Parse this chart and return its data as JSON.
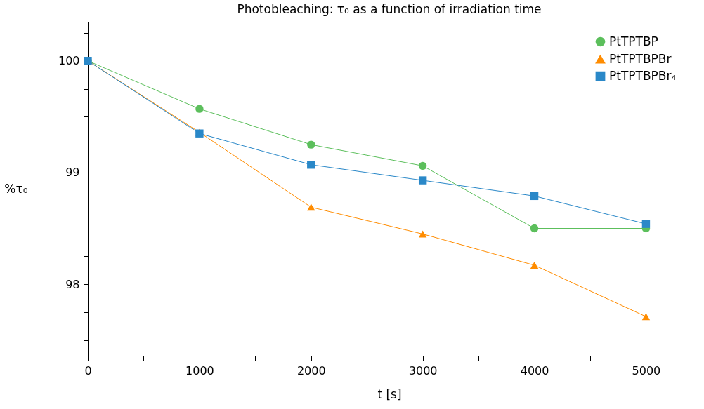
{
  "chart_data": {
    "type": "line",
    "title": "Photobleaching: τ₀ as a function of irradiation time",
    "xlabel": "t [s]",
    "ylabel": "%τ₀",
    "x": [
      0,
      1000,
      2000,
      3000,
      4000,
      5000
    ],
    "series": [
      {
        "name": "PtTPTBP",
        "color": "#5cbf5c",
        "marker": "circle",
        "values": [
          100,
          99.57,
          99.25,
          99.06,
          98.5,
          98.5
        ]
      },
      {
        "name": "PtTPTBPBr",
        "color": "#ff8c00",
        "marker": "triangle",
        "values": [
          100,
          99.36,
          98.69,
          98.45,
          98.17,
          97.71
        ]
      },
      {
        "name": "PtTPTBPBr₄",
        "color": "#2a88c8",
        "marker": "square",
        "values": [
          100,
          99.35,
          99.07,
          98.93,
          98.79,
          98.54
        ]
      }
    ],
    "xlim": [
      0,
      5400
    ],
    "ylim": [
      97.36,
      100.35
    ],
    "xticks": [
      0,
      {
        "value": 500,
        "label": null
      },
      1000,
      {
        "value": 1500,
        "label": null
      },
      2000,
      {
        "value": 2500,
        "label": null
      },
      3000,
      {
        "value": 3500,
        "label": null
      },
      4000,
      {
        "value": 4500,
        "label": null
      },
      5000
    ],
    "yticks": [
      {
        "value": 97.5,
        "label": null
      },
      {
        "value": 97.75,
        "label": null
      },
      98,
      {
        "value": 98.25,
        "label": null
      },
      {
        "value": 98.5,
        "label": null
      },
      {
        "value": 98.75,
        "label": null
      },
      99,
      {
        "value": 99.25,
        "label": null
      },
      {
        "value": 99.5,
        "label": null
      },
      {
        "value": 99.75,
        "label": null
      },
      100,
      {
        "value": 100.25,
        "label": null
      }
    ],
    "grid": false,
    "legend": "top right",
    "line_style": "solid"
  }
}
